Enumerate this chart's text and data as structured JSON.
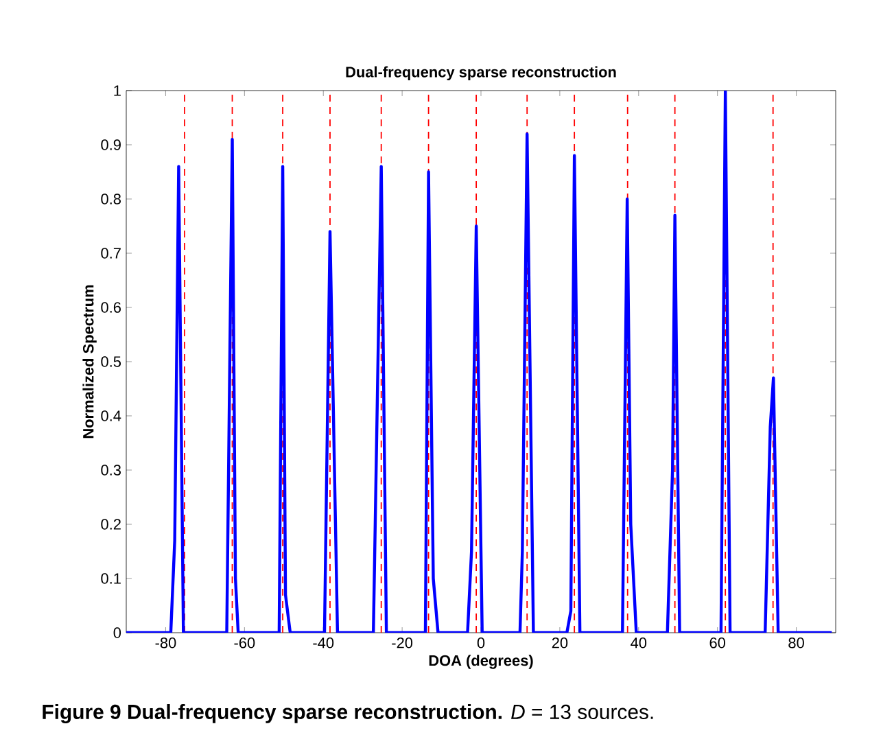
{
  "chart_data": {
    "type": "line",
    "title": "Dual-frequency sparse reconstruction",
    "xlabel": "DOA (degrees)",
    "ylabel": "Normalized Spectrum",
    "annotations": [
      "**Figure 9 Dual-frequency sparse reconstruction.** *D* = 13 sources."
    ],
    "series": [
      {
        "color": "#0000ff",
        "x": [
          -90,
          -78.7,
          -77.7,
          -76.7,
          -75.5,
          -64.5,
          -63.1,
          -62.3,
          -61.6,
          -51.2,
          -50.3,
          -49.6,
          -48.4,
          -39.7,
          -38.3,
          -36.4,
          -27.3,
          -25.3,
          -24,
          -14.1,
          -13.3,
          -12.1,
          -10.9,
          -3.4,
          -2.4,
          -1.2,
          0.3,
          9.9,
          10.5,
          11.7,
          13.3,
          21.8,
          22.8,
          23.7,
          25.1,
          35.9,
          37.1,
          38,
          39.4,
          47.3,
          48.6,
          49.2,
          50.4,
          60.9,
          62,
          63.2,
          72.1,
          73.4,
          74.2,
          75.4,
          89
        ],
        "values": [
          0,
          0,
          0.17,
          0.86,
          0,
          0,
          0.91,
          0.1,
          0,
          0,
          0.86,
          0.07,
          0,
          0,
          0.74,
          0,
          0,
          0.86,
          0,
          0,
          0.85,
          0.1,
          0,
          0,
          0.15,
          0.75,
          0,
          0,
          0.15,
          0.92,
          0,
          0,
          0.04,
          0.88,
          0,
          0,
          0.8,
          0.2,
          0,
          0,
          0.3,
          0.77,
          0,
          0,
          1,
          0,
          0,
          0.38,
          0.47,
          0,
          0
        ]
      }
    ],
    "xlim": [
      -90,
      90
    ],
    "ylim": [
      0,
      1
    ],
    "xticks": [
      -80,
      -60,
      -40,
      -20,
      0,
      20,
      40,
      60,
      80
    ],
    "yticks": [
      0,
      0.1,
      0.2,
      0.3,
      0.4,
      0.5,
      0.6,
      0.7,
      0.8,
      0.9,
      1
    ],
    "ref_lines": [
      {
        "axis": "x",
        "value": -75.2,
        "color": "#ff0000",
        "line_style": "dashed"
      },
      {
        "axis": "x",
        "value": -63.1,
        "color": "#ff0000",
        "line_style": "dashed"
      },
      {
        "axis": "x",
        "value": -50.3,
        "color": "#ff0000",
        "line_style": "dashed"
      },
      {
        "axis": "x",
        "value": -38.3,
        "color": "#ff0000",
        "line_style": "dashed"
      },
      {
        "axis": "x",
        "value": -25.3,
        "color": "#ff0000",
        "line_style": "dashed"
      },
      {
        "axis": "x",
        "value": -13.3,
        "color": "#ff0000",
        "line_style": "dashed"
      },
      {
        "axis": "x",
        "value": -1.2,
        "color": "#ff0000",
        "line_style": "dashed"
      },
      {
        "axis": "x",
        "value": 11.7,
        "color": "#ff0000",
        "line_style": "dashed"
      },
      {
        "axis": "x",
        "value": 23.7,
        "color": "#ff0000",
        "line_style": "dashed"
      },
      {
        "axis": "x",
        "value": 37.2,
        "color": "#ff0000",
        "line_style": "dashed"
      },
      {
        "axis": "x",
        "value": 49.2,
        "color": "#ff0000",
        "line_style": "dashed"
      },
      {
        "axis": "x",
        "value": 62,
        "color": "#ff0000",
        "line_style": "dashed"
      },
      {
        "axis": "x",
        "value": 74.1,
        "color": "#ff0000",
        "line_style": "dashed"
      }
    ],
    "grid": false,
    "marker": "none",
    "line_style": "solid"
  }
}
